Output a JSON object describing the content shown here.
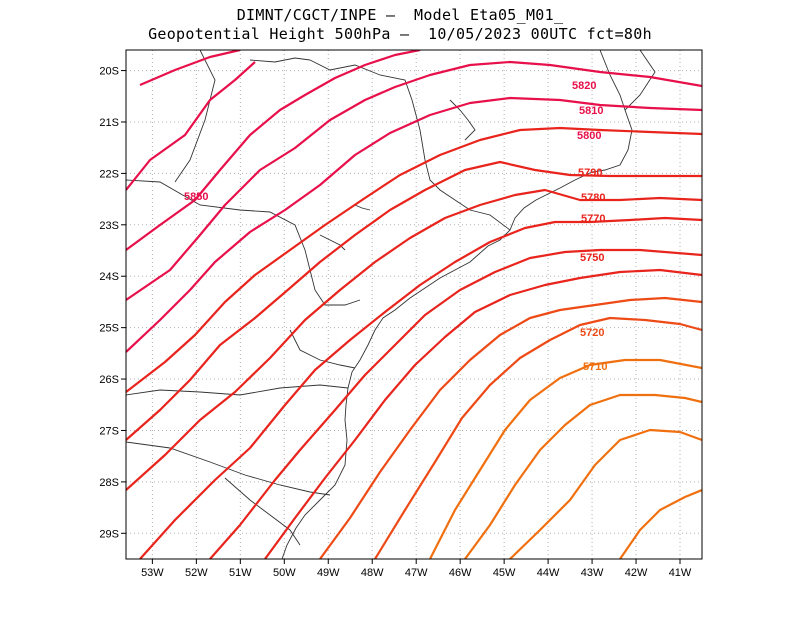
{
  "header": {
    "line1": "DIMNT/CGCT/INPE –  Model Eta05_M01_",
    "line2": "Geopotential Height 500hPa –  10/05/2023 00UTC fct=80h"
  },
  "chart_data": {
    "type": "contour_map",
    "lon_range": [
      -53.6,
      -40.5
    ],
    "lat_range": [
      -29.5,
      -19.6
    ],
    "x_ticks": [
      "53W",
      "52W",
      "51W",
      "50W",
      "49W",
      "48W",
      "47W",
      "46W",
      "45W",
      "44W",
      "43W",
      "42W",
      "41W"
    ],
    "y_ticks": [
      "20S",
      "21S",
      "22S",
      "23S",
      "24S",
      "25S",
      "26S",
      "27S",
      "28S",
      "29S"
    ],
    "grid": true,
    "contour_interval": 10,
    "contour_labels": [
      {
        "value": "5820"
      },
      {
        "value": "5810"
      },
      {
        "value": "5800"
      },
      {
        "value": "5790"
      },
      {
        "value": "5780"
      },
      {
        "value": "5770"
      },
      {
        "value": "5750"
      },
      {
        "value": "5720"
      },
      {
        "value": "5710"
      },
      {
        "value": "5850"
      }
    ],
    "colors": {
      "high": "#e8104a",
      "mid": "#e8241c",
      "low": "#f07010"
    }
  }
}
